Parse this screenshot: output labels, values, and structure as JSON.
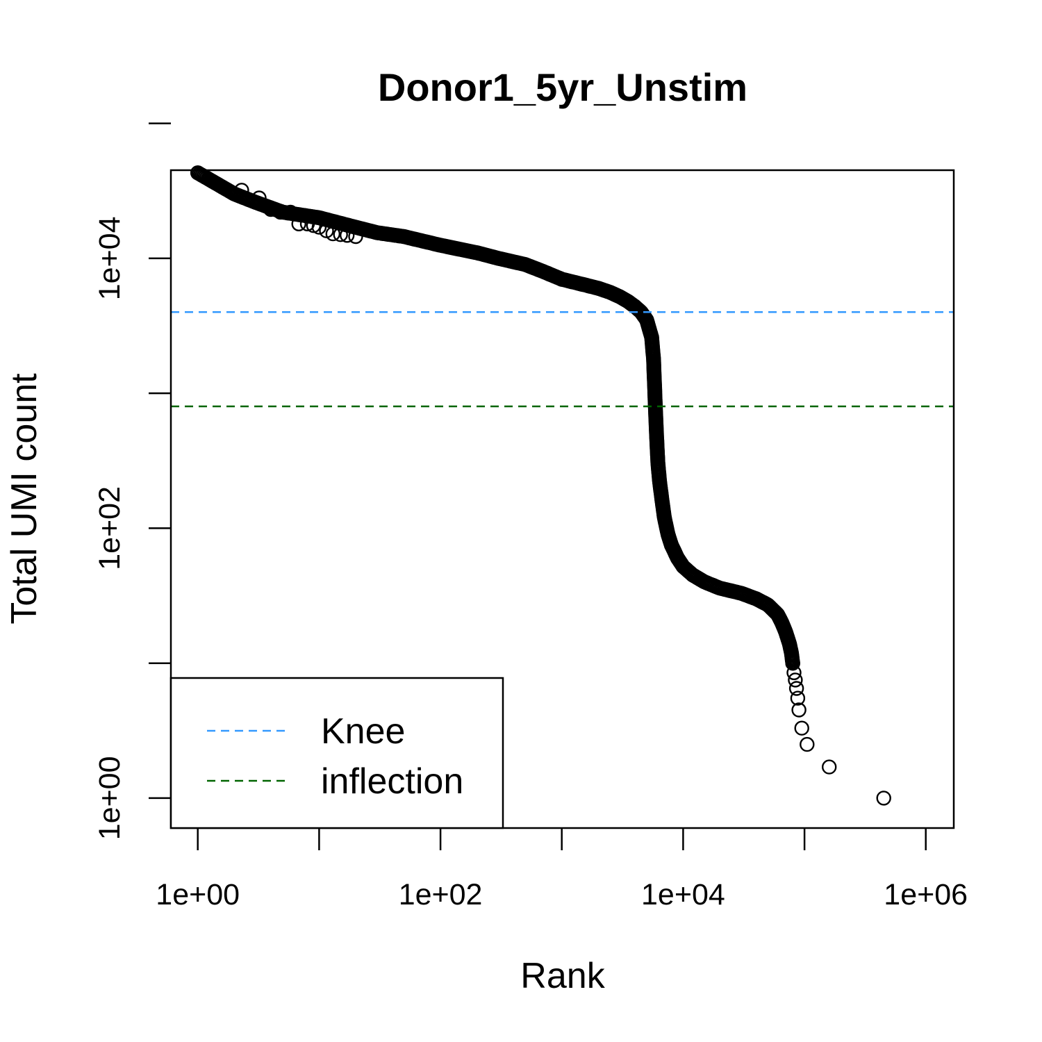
{
  "chart_data": {
    "type": "scatter",
    "title": "Donor1_5yr_Unstim",
    "xlabel": "Rank",
    "ylabel": "Total UMI count",
    "x_scale": "log",
    "y_scale": "log",
    "xlim": [
      0.6,
      1700000
    ],
    "ylim": [
      0.6,
      45000
    ],
    "x_ticks": [
      1,
      10,
      100,
      1000,
      10000,
      100000,
      1000000
    ],
    "x_tick_labels": [
      "1e+00",
      "",
      "1e+02",
      "",
      "1e+04",
      "",
      "1e+06"
    ],
    "y_ticks": [
      1,
      10,
      100,
      1000,
      10000,
      100000
    ],
    "y_tick_labels": [
      "1e+00",
      "",
      "1e+02",
      "",
      "1e+04",
      ""
    ],
    "grid": false,
    "marker": "open-circle",
    "marker_color": "#000000",
    "series": [
      {
        "name": "",
        "curve": {
          "x": [
            1,
            2,
            3,
            5,
            10,
            20,
            30,
            50,
            100,
            200,
            300,
            500,
            700,
            1000,
            1500,
            2000,
            2500,
            3000,
            3500,
            4000,
            4500,
            5000,
            5500,
            5700,
            5800,
            5900,
            6000,
            6100,
            6200,
            6400,
            6700,
            7000,
            7500,
            8000,
            9000,
            10000,
            12000,
            15000,
            20000,
            30000,
            40000,
            50000,
            60000,
            65000,
            70000,
            75000,
            78000,
            80000
          ],
          "y": [
            43000,
            30000,
            26000,
            22000,
            20000,
            17000,
            15500,
            14500,
            12500,
            11000,
            10000,
            9000,
            8000,
            7000,
            6400,
            6000,
            5600,
            5200,
            4800,
            4400,
            4000,
            3500,
            2600,
            1800,
            1200,
            800,
            550,
            400,
            300,
            220,
            160,
            120,
            90,
            75,
            60,
            52,
            45,
            40,
            36,
            33,
            30,
            27,
            23,
            20,
            17,
            14,
            12,
            10
          ]
        },
        "points": {
          "x": [
            1,
            2.3,
            3.2,
            4.0,
            4.8,
            5.8,
            6.8,
            8.0,
            9.0,
            10.0,
            11.5,
            13.0,
            15.0,
            17.0,
            20.0,
            80000,
            82000,
            84000,
            86000,
            88000,
            90000,
            95000,
            105000,
            160000,
            450000
          ],
          "y": [
            43000,
            32000,
            28000,
            23000,
            22000,
            22000,
            18000,
            18000,
            17500,
            17000,
            16000,
            15200,
            15000,
            14800,
            14500,
            10,
            8.5,
            7.5,
            6.5,
            5.5,
            4.5,
            3.3,
            2.5,
            1.7,
            1
          ]
        }
      }
    ],
    "hlines": [
      {
        "name": "Knee",
        "y": 4000,
        "color": "#3399ff",
        "style": "dashed"
      },
      {
        "name": "inflection",
        "y": 800,
        "color": "#006400",
        "style": "dashed"
      }
    ],
    "legend": {
      "position": "bottom-left",
      "entries": [
        {
          "label": "Knee",
          "color": "#3399ff",
          "style": "dashed"
        },
        {
          "label": "inflection",
          "color": "#006400",
          "style": "dashed"
        }
      ]
    }
  }
}
